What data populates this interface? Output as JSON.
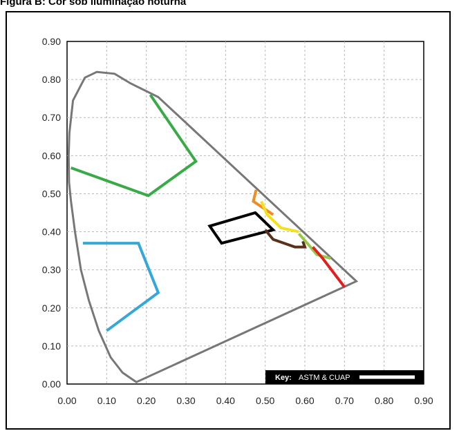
{
  "figure_title": "Figura B: Cor sob iluminação noturna",
  "chart_data": {
    "type": "scatter",
    "title": "",
    "xlabel": "",
    "ylabel": "",
    "xlim": [
      0,
      0.9
    ],
    "ylim": [
      0,
      0.9
    ],
    "xticks": [
      "0.00",
      "0.10",
      "0.20",
      "0.30",
      "0.40",
      "0.50",
      "0.60",
      "0.70",
      "0.80",
      "0.90"
    ],
    "yticks": [
      "0.00",
      "0.10",
      "0.20",
      "0.30",
      "0.40",
      "0.50",
      "0.60",
      "0.70",
      "0.80",
      "0.90"
    ],
    "grid": true,
    "legend": {
      "key_label": "Key:",
      "entry": "ASTM & CUAP",
      "placement": "bottom-right"
    },
    "series": [
      {
        "id": "spectral-locus",
        "color": "#777777",
        "closed": true,
        "points": [
          [
            0.175,
            0.005
          ],
          [
            0.14,
            0.03
          ],
          [
            0.11,
            0.07
          ],
          [
            0.08,
            0.14
          ],
          [
            0.055,
            0.22
          ],
          [
            0.035,
            0.3
          ],
          [
            0.02,
            0.4
          ],
          [
            0.01,
            0.48
          ],
          [
            0.005,
            0.53
          ],
          [
            0.004,
            0.6
          ],
          [
            0.006,
            0.66
          ],
          [
            0.015,
            0.745
          ],
          [
            0.045,
            0.805
          ],
          [
            0.075,
            0.82
          ],
          [
            0.12,
            0.815
          ],
          [
            0.16,
            0.79
          ],
          [
            0.23,
            0.754
          ],
          [
            0.73,
            0.27
          ]
        ]
      },
      {
        "id": "green-region",
        "color": "#3aaa48",
        "closed": false,
        "points": [
          [
            0.21,
            0.76
          ],
          [
            0.325,
            0.585
          ],
          [
            0.205,
            0.495
          ],
          [
            0.01,
            0.568
          ]
        ]
      },
      {
        "id": "blue-region",
        "color": "#34a8d8",
        "closed": false,
        "points": [
          [
            0.04,
            0.37
          ],
          [
            0.18,
            0.37
          ],
          [
            0.23,
            0.24
          ],
          [
            0.1,
            0.14
          ]
        ]
      },
      {
        "id": "black-region",
        "color": "#000000",
        "closed": true,
        "points": [
          [
            0.36,
            0.415
          ],
          [
            0.475,
            0.45
          ],
          [
            0.52,
            0.405
          ],
          [
            0.39,
            0.37
          ]
        ]
      },
      {
        "id": "orange-region",
        "color": "#f08c24",
        "closed": false,
        "points": [
          [
            0.477,
            0.51
          ],
          [
            0.47,
            0.48
          ],
          [
            0.52,
            0.445
          ]
        ]
      },
      {
        "id": "yellow-region",
        "color": "#f5e020",
        "closed": false,
        "points": [
          [
            0.49,
            0.48
          ],
          [
            0.505,
            0.445
          ],
          [
            0.54,
            0.41
          ],
          [
            0.585,
            0.4
          ]
        ]
      },
      {
        "id": "brown-region",
        "color": "#5a3018",
        "closed": false,
        "points": [
          [
            0.5,
            0.405
          ],
          [
            0.52,
            0.38
          ],
          [
            0.575,
            0.36
          ],
          [
            0.6,
            0.36
          ],
          [
            0.595,
            0.375
          ]
        ]
      },
      {
        "id": "lightgreen-region",
        "color": "#98c84a",
        "closed": false,
        "points": [
          [
            0.585,
            0.395
          ],
          [
            0.61,
            0.365
          ],
          [
            0.63,
            0.34
          ],
          [
            0.665,
            0.33
          ]
        ]
      },
      {
        "id": "red-region",
        "color": "#e02020",
        "closed": false,
        "points": [
          [
            0.62,
            0.36
          ],
          [
            0.645,
            0.33
          ],
          [
            0.7,
            0.255
          ]
        ]
      }
    ]
  }
}
